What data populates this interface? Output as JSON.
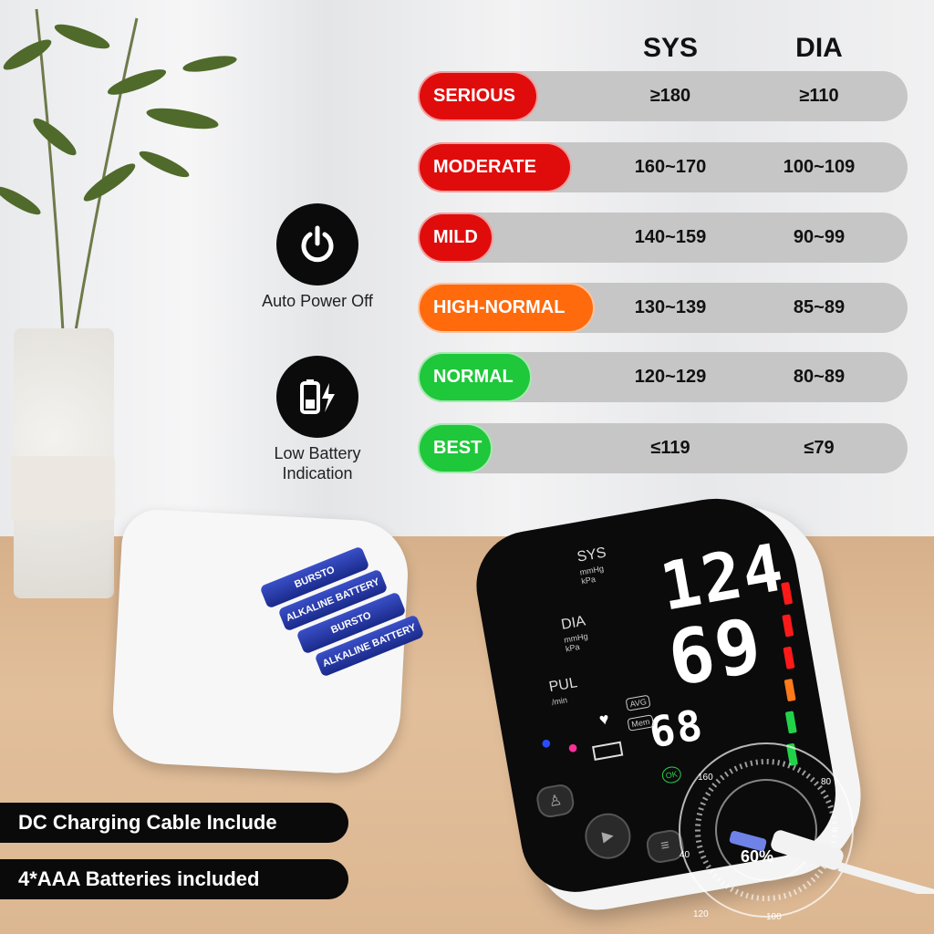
{
  "table": {
    "headers": {
      "sys": "SYS",
      "dia": "DIA"
    },
    "rows": [
      {
        "label": "SERIOUS",
        "sys": "≥180",
        "dia": "≥110",
        "color": "#e00c0c"
      },
      {
        "label": "MODERATE",
        "sys": "160~170",
        "dia": "100~109",
        "color": "#e00c0c"
      },
      {
        "label": "MILD",
        "sys": "140~159",
        "dia": "90~99",
        "color": "#e00c0c"
      },
      {
        "label": "HIGH-NORMAL",
        "sys": "130~139",
        "dia": "85~89",
        "color": "#ff6a0d"
      },
      {
        "label": "NORMAL",
        "sys": "120~129",
        "dia": "80~89",
        "color": "#1fc73a"
      },
      {
        "label": "BEST",
        "sys": "≤119",
        "dia": "≤79",
        "color": "#1fc73a"
      }
    ]
  },
  "features": [
    {
      "icon": "power-icon",
      "label": "Auto Power Off"
    },
    {
      "icon": "battery-charging-icon",
      "label": "Low Battery Indication"
    }
  ],
  "batteries": {
    "brand": "BURSTO",
    "type": "ALKALINE BATTERY"
  },
  "device": {
    "sys_label": "SYS",
    "dia_label": "DIA",
    "pul_label": "PUL",
    "unit_mmhg": "mmHg",
    "unit_kpa": "kPa",
    "unit_min": "/min",
    "sys_value": "124",
    "dia_value": "69",
    "pul_value": "68",
    "avg": "AVG",
    "mem": "Mem",
    "ok": "OK",
    "dial_percent": "60%",
    "dial_ticks": [
      "40",
      "160",
      "80",
      "120",
      "100"
    ]
  },
  "callouts": [
    "DC Charging Cable Include",
    "4*AAA Batteries included"
  ]
}
